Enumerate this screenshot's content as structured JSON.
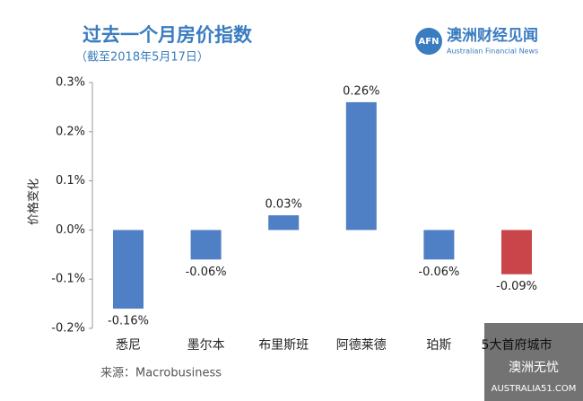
{
  "chart_data": {
    "type": "bar",
    "title": "过去一个月房价指数",
    "subtitle": "（截至2018年5月17日）",
    "y_label": "价格变化",
    "categories": [
      "悉尼",
      "墨尔本",
      "布里斯班",
      "阿德莱德",
      "珀斯",
      "5大首府城市"
    ],
    "values": [
      -0.16,
      -0.06,
      0.03,
      0.26,
      -0.06,
      -0.09
    ],
    "value_labels": [
      "-0.16%",
      "-0.06%",
      "0.03%",
      "0.26%",
      "-0.06%",
      "-0.09%"
    ],
    "colors": [
      "#4f7fc5",
      "#4f7fc5",
      "#4f7fc5",
      "#4f7fc5",
      "#4f7fc5",
      "#c9454a"
    ],
    "ylim": [
      -0.2,
      0.3
    ],
    "yticks": [
      {
        "value": 0.3,
        "label": "0.3%"
      },
      {
        "value": 0.2,
        "label": "0.2%"
      },
      {
        "value": 0.1,
        "label": "0.1%"
      },
      {
        "value": 0,
        "label": "0.0%"
      },
      {
        "value": -0.1,
        "label": "-0.1%"
      },
      {
        "value": -0.2,
        "label": "-0.2%"
      }
    ],
    "source": "来源：Macrobusiness"
  },
  "logo": {
    "mark": "AFN",
    "name": "澳洲财经见闻",
    "english": "Australian Financial News"
  },
  "watermark": {
    "name": "澳洲无忧",
    "site": "AUSTRALIA51.COM"
  }
}
